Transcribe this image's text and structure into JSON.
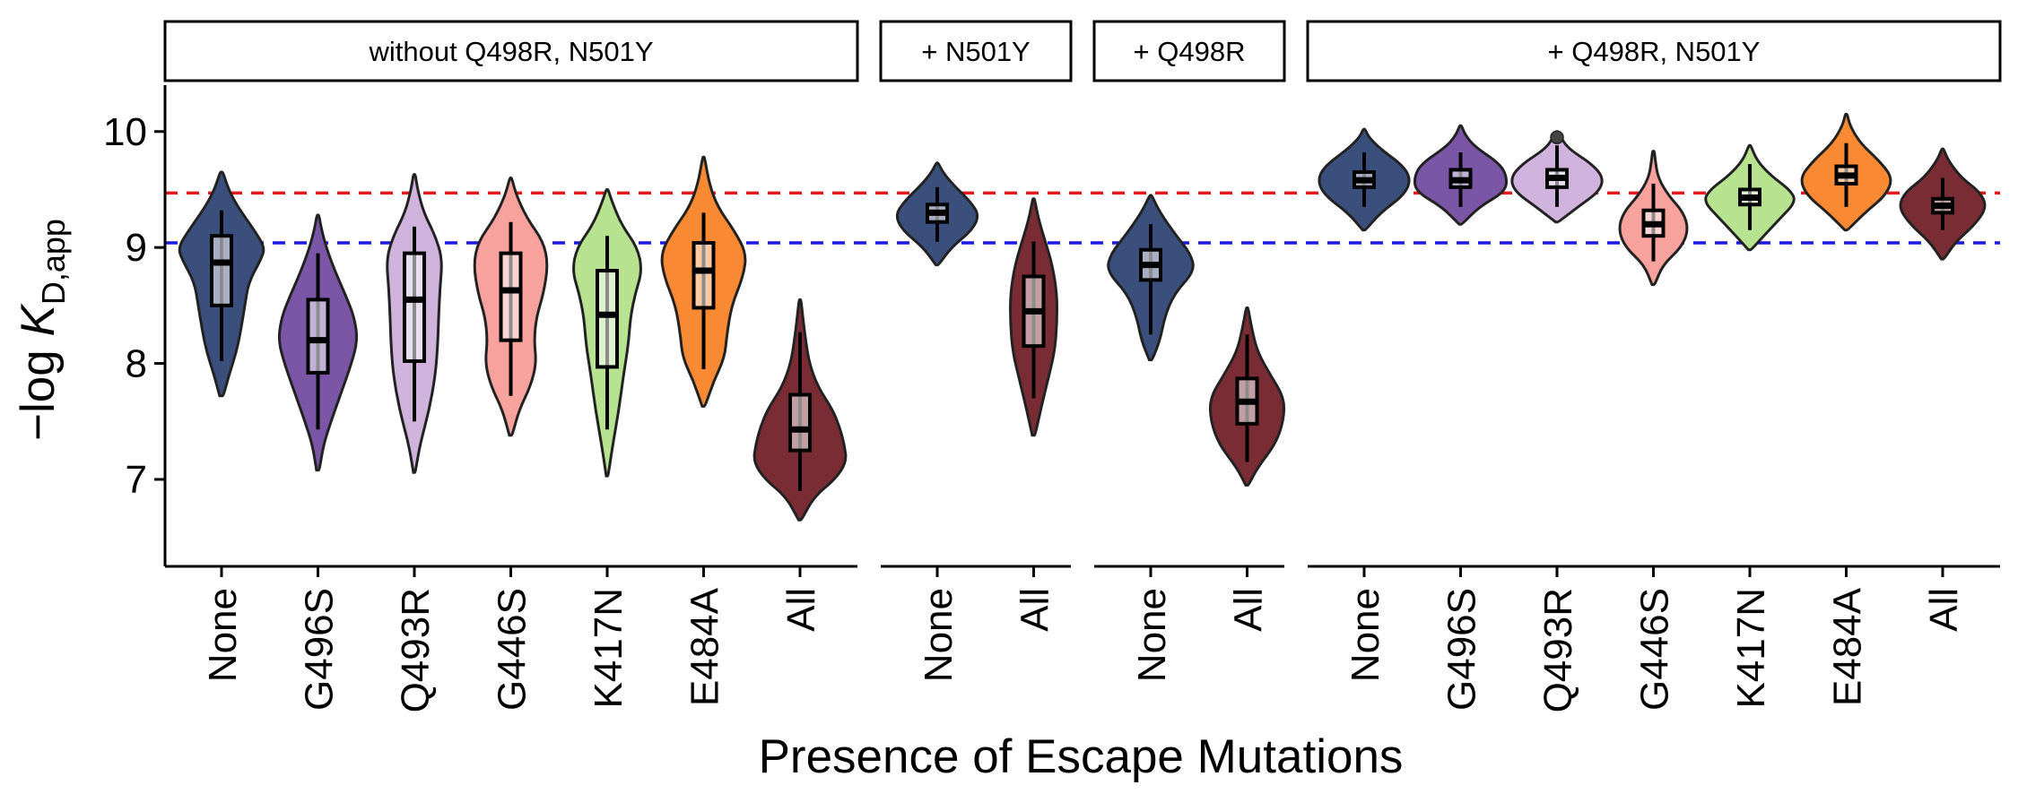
{
  "chart_data": {
    "type": "violin",
    "xlabel": "Presence of Escape Mutations",
    "ylabel_main": "−log ",
    "ylabel_italic": "K",
    "ylabel_sub": "D,app",
    "ylim": [
      6.25,
      10.4
    ],
    "yticks": [
      7,
      8,
      9,
      10
    ],
    "reference_lines": [
      {
        "value": 9.47,
        "color": "#e41a1c",
        "style": "dashed"
      },
      {
        "value": 9.04,
        "color": "#1a1ae4",
        "style": "dashed"
      }
    ],
    "colors": {
      "None": "#3b4f7d",
      "G496S": "#7b56a6",
      "Q493R": "#cfb3dd",
      "G446S": "#f8a29d",
      "K417N": "#b7e391",
      "E484A": "#f98a33",
      "All": "#7a2c35"
    },
    "panels": [
      {
        "label": "without Q498R, N501Y",
        "groups": [
          {
            "category": "None",
            "min": 7.72,
            "max": 9.65,
            "q1": 8.5,
            "median": 8.87,
            "q3": 9.1,
            "wlo": 8.02,
            "whi": 9.32,
            "density": [
              [
                7.72,
                0.04
              ],
              [
                7.9,
                0.16
              ],
              [
                8.1,
                0.32
              ],
              [
                8.3,
                0.42
              ],
              [
                8.5,
                0.5
              ],
              [
                8.7,
                0.58
              ],
              [
                8.9,
                0.85
              ],
              [
                9.0,
                0.93
              ],
              [
                9.15,
                0.7
              ],
              [
                9.35,
                0.35
              ],
              [
                9.5,
                0.15
              ],
              [
                9.65,
                0.03
              ]
            ]
          },
          {
            "category": "G496S",
            "min": 7.08,
            "max": 9.28,
            "q1": 7.92,
            "median": 8.2,
            "q3": 8.55,
            "wlo": 7.43,
            "whi": 8.95,
            "density": [
              [
                7.08,
                0.03
              ],
              [
                7.3,
                0.12
              ],
              [
                7.5,
                0.28
              ],
              [
                7.75,
                0.5
              ],
              [
                8.0,
                0.72
              ],
              [
                8.2,
                0.85
              ],
              [
                8.4,
                0.78
              ],
              [
                8.6,
                0.58
              ],
              [
                8.8,
                0.36
              ],
              [
                9.0,
                0.18
              ],
              [
                9.15,
                0.08
              ],
              [
                9.28,
                0.02
              ]
            ]
          },
          {
            "category": "Q493R",
            "min": 7.06,
            "max": 9.63,
            "q1": 8.02,
            "median": 8.55,
            "q3": 8.95,
            "wlo": 7.5,
            "whi": 9.18,
            "density": [
              [
                7.06,
                0.02
              ],
              [
                7.3,
                0.12
              ],
              [
                7.6,
                0.32
              ],
              [
                7.9,
                0.45
              ],
              [
                8.15,
                0.5
              ],
              [
                8.4,
                0.52
              ],
              [
                8.65,
                0.55
              ],
              [
                8.9,
                0.6
              ],
              [
                9.1,
                0.45
              ],
              [
                9.3,
                0.2
              ],
              [
                9.5,
                0.07
              ],
              [
                9.63,
                0.02
              ]
            ]
          },
          {
            "category": "G446S",
            "min": 7.38,
            "max": 9.6,
            "q1": 8.2,
            "median": 8.63,
            "q3": 8.95,
            "wlo": 7.72,
            "whi": 9.22,
            "density": [
              [
                7.38,
                0.03
              ],
              [
                7.6,
                0.18
              ],
              [
                7.8,
                0.42
              ],
              [
                8.0,
                0.55
              ],
              [
                8.2,
                0.5
              ],
              [
                8.4,
                0.55
              ],
              [
                8.6,
                0.7
              ],
              [
                8.85,
                0.8
              ],
              [
                9.05,
                0.7
              ],
              [
                9.25,
                0.35
              ],
              [
                9.45,
                0.12
              ],
              [
                9.6,
                0.02
              ]
            ]
          },
          {
            "category": "K417N",
            "min": 7.03,
            "max": 9.5,
            "q1": 7.97,
            "median": 8.42,
            "q3": 8.8,
            "wlo": 7.43,
            "whi": 9.1,
            "density": [
              [
                7.03,
                0.02
              ],
              [
                7.3,
                0.12
              ],
              [
                7.6,
                0.25
              ],
              [
                7.9,
                0.35
              ],
              [
                8.15,
                0.45
              ],
              [
                8.4,
                0.5
              ],
              [
                8.6,
                0.6
              ],
              [
                8.8,
                0.75
              ],
              [
                9.0,
                0.65
              ],
              [
                9.2,
                0.3
              ],
              [
                9.4,
                0.1
              ],
              [
                9.5,
                0.02
              ]
            ]
          },
          {
            "category": "E484A",
            "min": 7.63,
            "max": 9.78,
            "q1": 8.48,
            "median": 8.8,
            "q3": 9.04,
            "wlo": 7.95,
            "whi": 9.3,
            "density": [
              [
                7.63,
                0.03
              ],
              [
                7.85,
                0.22
              ],
              [
                8.05,
                0.45
              ],
              [
                8.25,
                0.5
              ],
              [
                8.5,
                0.6
              ],
              [
                8.75,
                0.85
              ],
              [
                8.95,
                0.92
              ],
              [
                9.15,
                0.65
              ],
              [
                9.35,
                0.3
              ],
              [
                9.55,
                0.12
              ],
              [
                9.78,
                0.02
              ]
            ]
          },
          {
            "category": "All",
            "min": 6.65,
            "max": 8.55,
            "q1": 7.25,
            "median": 7.43,
            "q3": 7.73,
            "wlo": 6.9,
            "whi": 8.27,
            "density": [
              [
                6.65,
                0.03
              ],
              [
                6.85,
                0.3
              ],
              [
                7.0,
                0.75
              ],
              [
                7.15,
                1.0
              ],
              [
                7.3,
                0.95
              ],
              [
                7.45,
                0.85
              ],
              [
                7.6,
                0.7
              ],
              [
                7.8,
                0.38
              ],
              [
                8.0,
                0.2
              ],
              [
                8.2,
                0.12
              ],
              [
                8.4,
                0.06
              ],
              [
                8.55,
                0.02
              ]
            ]
          }
        ]
      },
      {
        "label": "+ N501Y",
        "groups": [
          {
            "category": "None",
            "min": 8.85,
            "max": 9.73,
            "q1": 9.22,
            "median": 9.3,
            "q3": 9.37,
            "wlo": 9.05,
            "whi": 9.52,
            "density": [
              [
                8.85,
                0.03
              ],
              [
                9.0,
                0.3
              ],
              [
                9.15,
                0.75
              ],
              [
                9.28,
                0.9
              ],
              [
                9.4,
                0.7
              ],
              [
                9.55,
                0.32
              ],
              [
                9.65,
                0.12
              ],
              [
                9.73,
                0.02
              ]
            ]
          },
          {
            "category": "All",
            "min": 7.38,
            "max": 9.42,
            "q1": 8.15,
            "median": 8.45,
            "q3": 8.75,
            "wlo": 7.7,
            "whi": 9.05,
            "density": [
              [
                7.38,
                0.03
              ],
              [
                7.6,
                0.15
              ],
              [
                7.85,
                0.3
              ],
              [
                8.1,
                0.45
              ],
              [
                8.35,
                0.5
              ],
              [
                8.6,
                0.5
              ],
              [
                8.85,
                0.4
              ],
              [
                9.05,
                0.25
              ],
              [
                9.25,
                0.1
              ],
              [
                9.42,
                0.02
              ]
            ]
          }
        ]
      },
      {
        "label": "+ Q498R",
        "groups": [
          {
            "category": "None",
            "min": 8.03,
            "max": 9.45,
            "q1": 8.72,
            "median": 8.85,
            "q3": 8.98,
            "wlo": 8.25,
            "whi": 9.2,
            "density": [
              [
                8.03,
                0.03
              ],
              [
                8.2,
                0.2
              ],
              [
                8.4,
                0.3
              ],
              [
                8.6,
                0.5
              ],
              [
                8.8,
                0.95
              ],
              [
                8.95,
                0.85
              ],
              [
                9.1,
                0.55
              ],
              [
                9.3,
                0.2
              ],
              [
                9.45,
                0.02
              ]
            ]
          },
          {
            "category": "All",
            "min": 6.95,
            "max": 8.48,
            "q1": 7.48,
            "median": 7.67,
            "q3": 7.87,
            "wlo": 7.15,
            "whi": 8.25,
            "density": [
              [
                6.95,
                0.03
              ],
              [
                7.1,
                0.22
              ],
              [
                7.3,
                0.6
              ],
              [
                7.5,
                0.78
              ],
              [
                7.7,
                0.8
              ],
              [
                7.9,
                0.5
              ],
              [
                8.1,
                0.22
              ],
              [
                8.3,
                0.1
              ],
              [
                8.48,
                0.02
              ]
            ]
          }
        ]
      },
      {
        "label": "+ Q498R, N501Y",
        "groups": [
          {
            "category": "None",
            "min": 9.15,
            "max": 10.02,
            "q1": 9.52,
            "median": 9.58,
            "q3": 9.65,
            "wlo": 9.35,
            "whi": 9.82,
            "density": [
              [
                9.15,
                0.03
              ],
              [
                9.3,
                0.35
              ],
              [
                9.45,
                0.85
              ],
              [
                9.58,
                1.0
              ],
              [
                9.7,
                0.85
              ],
              [
                9.85,
                0.35
              ],
              [
                9.95,
                0.1
              ],
              [
                10.02,
                0.02
              ]
            ]
          },
          {
            "category": "G496S",
            "min": 9.2,
            "max": 10.05,
            "q1": 9.52,
            "median": 9.58,
            "q3": 9.67,
            "wlo": 9.35,
            "whi": 9.82,
            "density": [
              [
                9.2,
                0.03
              ],
              [
                9.35,
                0.4
              ],
              [
                9.48,
                0.95
              ],
              [
                9.6,
                1.0
              ],
              [
                9.72,
                0.85
              ],
              [
                9.87,
                0.3
              ],
              [
                9.97,
                0.1
              ],
              [
                10.05,
                0.02
              ]
            ]
          },
          {
            "category": "Q493R",
            "min": 9.22,
            "max": 10.0,
            "q1": 9.52,
            "median": 9.6,
            "q3": 9.67,
            "wlo": 9.35,
            "whi": 9.88,
            "outlier": 9.95,
            "density": [
              [
                9.22,
                0.03
              ],
              [
                9.35,
                0.45
              ],
              [
                9.48,
                0.9
              ],
              [
                9.6,
                1.0
              ],
              [
                9.72,
                0.75
              ],
              [
                9.85,
                0.25
              ],
              [
                9.95,
                0.08
              ],
              [
                10.0,
                0.02
              ]
            ]
          },
          {
            "category": "G446S",
            "min": 8.68,
            "max": 9.83,
            "q1": 9.1,
            "median": 9.2,
            "q3": 9.32,
            "wlo": 8.88,
            "whi": 9.55,
            "density": [
              [
                8.68,
                0.03
              ],
              [
                8.85,
                0.2
              ],
              [
                9.0,
                0.6
              ],
              [
                9.15,
                0.75
              ],
              [
                9.3,
                0.65
              ],
              [
                9.45,
                0.32
              ],
              [
                9.6,
                0.1
              ],
              [
                9.75,
                0.04
              ],
              [
                9.83,
                0.02
              ]
            ]
          },
          {
            "category": "K417N",
            "min": 8.98,
            "max": 9.88,
            "q1": 9.37,
            "median": 9.43,
            "q3": 9.5,
            "wlo": 9.15,
            "whi": 9.72,
            "density": [
              [
                8.98,
                0.03
              ],
              [
                9.1,
                0.3
              ],
              [
                9.25,
                0.65
              ],
              [
                9.4,
                1.0
              ],
              [
                9.5,
                0.85
              ],
              [
                9.62,
                0.45
              ],
              [
                9.75,
                0.15
              ],
              [
                9.88,
                0.02
              ]
            ]
          },
          {
            "category": "E484A",
            "min": 9.15,
            "max": 10.15,
            "q1": 9.55,
            "median": 9.62,
            "q3": 9.7,
            "wlo": 9.35,
            "whi": 9.9,
            "density": [
              [
                9.15,
                0.03
              ],
              [
                9.3,
                0.4
              ],
              [
                9.45,
                0.85
              ],
              [
                9.6,
                1.0
              ],
              [
                9.75,
                0.7
              ],
              [
                9.9,
                0.3
              ],
              [
                10.05,
                0.08
              ],
              [
                10.15,
                0.02
              ]
            ]
          },
          {
            "category": "All",
            "min": 8.9,
            "max": 9.85,
            "q1": 9.3,
            "median": 9.36,
            "q3": 9.42,
            "wlo": 9.15,
            "whi": 9.6,
            "density": [
              [
                8.9,
                0.03
              ],
              [
                9.05,
                0.28
              ],
              [
                9.2,
                0.7
              ],
              [
                9.35,
                0.95
              ],
              [
                9.48,
                0.8
              ],
              [
                9.6,
                0.4
              ],
              [
                9.75,
                0.12
              ],
              [
                9.85,
                0.02
              ]
            ]
          }
        ]
      }
    ]
  }
}
